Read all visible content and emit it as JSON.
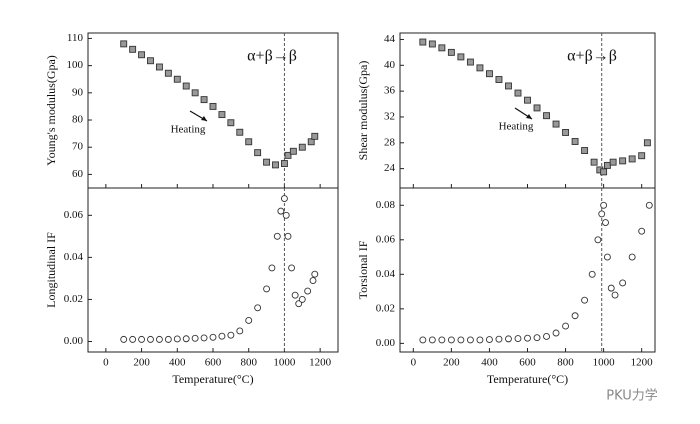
{
  "chart_data": [
    {
      "type": "scatter",
      "ylabel": "Young's modulus(Gpa)",
      "annotation": "α+β→β",
      "arrow_label": "Heating",
      "marker": "square",
      "transition_x": 1000,
      "xlim": [
        -100,
        1300
      ],
      "xticks": [
        0,
        200,
        400,
        600,
        800,
        1000,
        1200
      ],
      "ylim": [
        55,
        112
      ],
      "yticks": [
        60,
        70,
        80,
        90,
        100,
        110
      ],
      "x": [
        100,
        150,
        200,
        250,
        300,
        350,
        400,
        450,
        500,
        550,
        600,
        650,
        700,
        750,
        800,
        850,
        900,
        950,
        1000,
        1020,
        1050,
        1100,
        1150,
        1170
      ],
      "values": [
        108,
        106,
        104,
        101.8,
        99.5,
        97.2,
        95,
        92.5,
        90,
        87.5,
        85,
        82,
        79,
        75.5,
        72,
        68,
        64.5,
        63.5,
        64,
        67,
        68.5,
        70,
        72,
        74
      ]
    },
    {
      "type": "scatter",
      "ylabel": "Longitudinal IF",
      "xlabel": "Temperature(°C)",
      "marker": "circle",
      "transition_x": 1000,
      "xlim": [
        -100,
        1300
      ],
      "xticks": [
        0,
        200,
        400,
        600,
        800,
        1000,
        1200
      ],
      "ylim": [
        -0.005,
        0.073
      ],
      "yticks": [
        {
          "value": 0,
          "label": "0.00"
        },
        {
          "value": 0.02,
          "label": "0.02"
        },
        {
          "value": 0.04,
          "label": "0.04"
        },
        {
          "value": 0.06,
          "label": "0.06"
        }
      ],
      "x": [
        100,
        150,
        200,
        250,
        300,
        350,
        400,
        450,
        500,
        550,
        600,
        650,
        700,
        750,
        800,
        850,
        900,
        930,
        960,
        980,
        1000,
        1010,
        1020,
        1040,
        1060,
        1080,
        1100,
        1130,
        1160,
        1170
      ],
      "values": [
        0.001,
        0.001,
        0.001,
        0.001,
        0.001,
        0.001,
        0.0012,
        0.0013,
        0.0015,
        0.0017,
        0.002,
        0.0025,
        0.003,
        0.005,
        0.01,
        0.016,
        0.025,
        0.035,
        0.05,
        0.062,
        0.068,
        0.06,
        0.05,
        0.035,
        0.022,
        0.018,
        0.02,
        0.024,
        0.029,
        0.032
      ]
    },
    {
      "type": "scatter",
      "ylabel": "Shear modulus(Gpa)",
      "annotation": "α+β→β",
      "arrow_label": "Heating",
      "marker": "square",
      "transition_x": 990,
      "xlim": [
        -70,
        1270
      ],
      "xticks": [
        0,
        200,
        400,
        600,
        800,
        1000,
        1200
      ],
      "ylim": [
        21,
        45
      ],
      "yticks": [
        24,
        28,
        32,
        36,
        40,
        44
      ],
      "x": [
        50,
        100,
        150,
        200,
        250,
        300,
        350,
        400,
        450,
        500,
        550,
        600,
        650,
        700,
        750,
        800,
        850,
        900,
        950,
        980,
        1000,
        1020,
        1050,
        1100,
        1150,
        1200,
        1230
      ],
      "values": [
        43.6,
        43.3,
        42.7,
        42,
        41.3,
        40.5,
        39.6,
        38.7,
        37.8,
        36.8,
        35.7,
        34.6,
        33.4,
        32.2,
        30.9,
        29.6,
        28.2,
        26.8,
        25,
        23.8,
        23.5,
        24.5,
        25,
        25.2,
        25.5,
        26,
        28
      ]
    },
    {
      "type": "scatter",
      "ylabel": "Torsional IF",
      "xlabel": "Temperature(°C)",
      "marker": "circle",
      "transition_x": 990,
      "watermark": "PKU力学",
      "xlim": [
        -70,
        1270
      ],
      "xticks": [
        0,
        200,
        400,
        600,
        800,
        1000,
        1200
      ],
      "ylim": [
        -0.005,
        0.09
      ],
      "yticks": [
        {
          "value": 0,
          "label": "0.00"
        },
        {
          "value": 0.02,
          "label": "0.02"
        },
        {
          "value": 0.04,
          "label": "0.04"
        },
        {
          "value": 0.06,
          "label": "0.06"
        },
        {
          "value": 0.08,
          "label": "0.08"
        }
      ],
      "x": [
        50,
        100,
        150,
        200,
        250,
        300,
        350,
        400,
        450,
        500,
        550,
        600,
        650,
        700,
        750,
        800,
        850,
        900,
        940,
        970,
        990,
        1000,
        1010,
        1020,
        1040,
        1060,
        1100,
        1150,
        1200,
        1240
      ],
      "values": [
        0.002,
        0.002,
        0.002,
        0.002,
        0.002,
        0.002,
        0.002,
        0.0022,
        0.0024,
        0.0026,
        0.0028,
        0.003,
        0.0033,
        0.004,
        0.006,
        0.01,
        0.016,
        0.025,
        0.04,
        0.06,
        0.075,
        0.08,
        0.07,
        0.05,
        0.032,
        0.028,
        0.035,
        0.05,
        0.065,
        0.08
      ]
    }
  ]
}
